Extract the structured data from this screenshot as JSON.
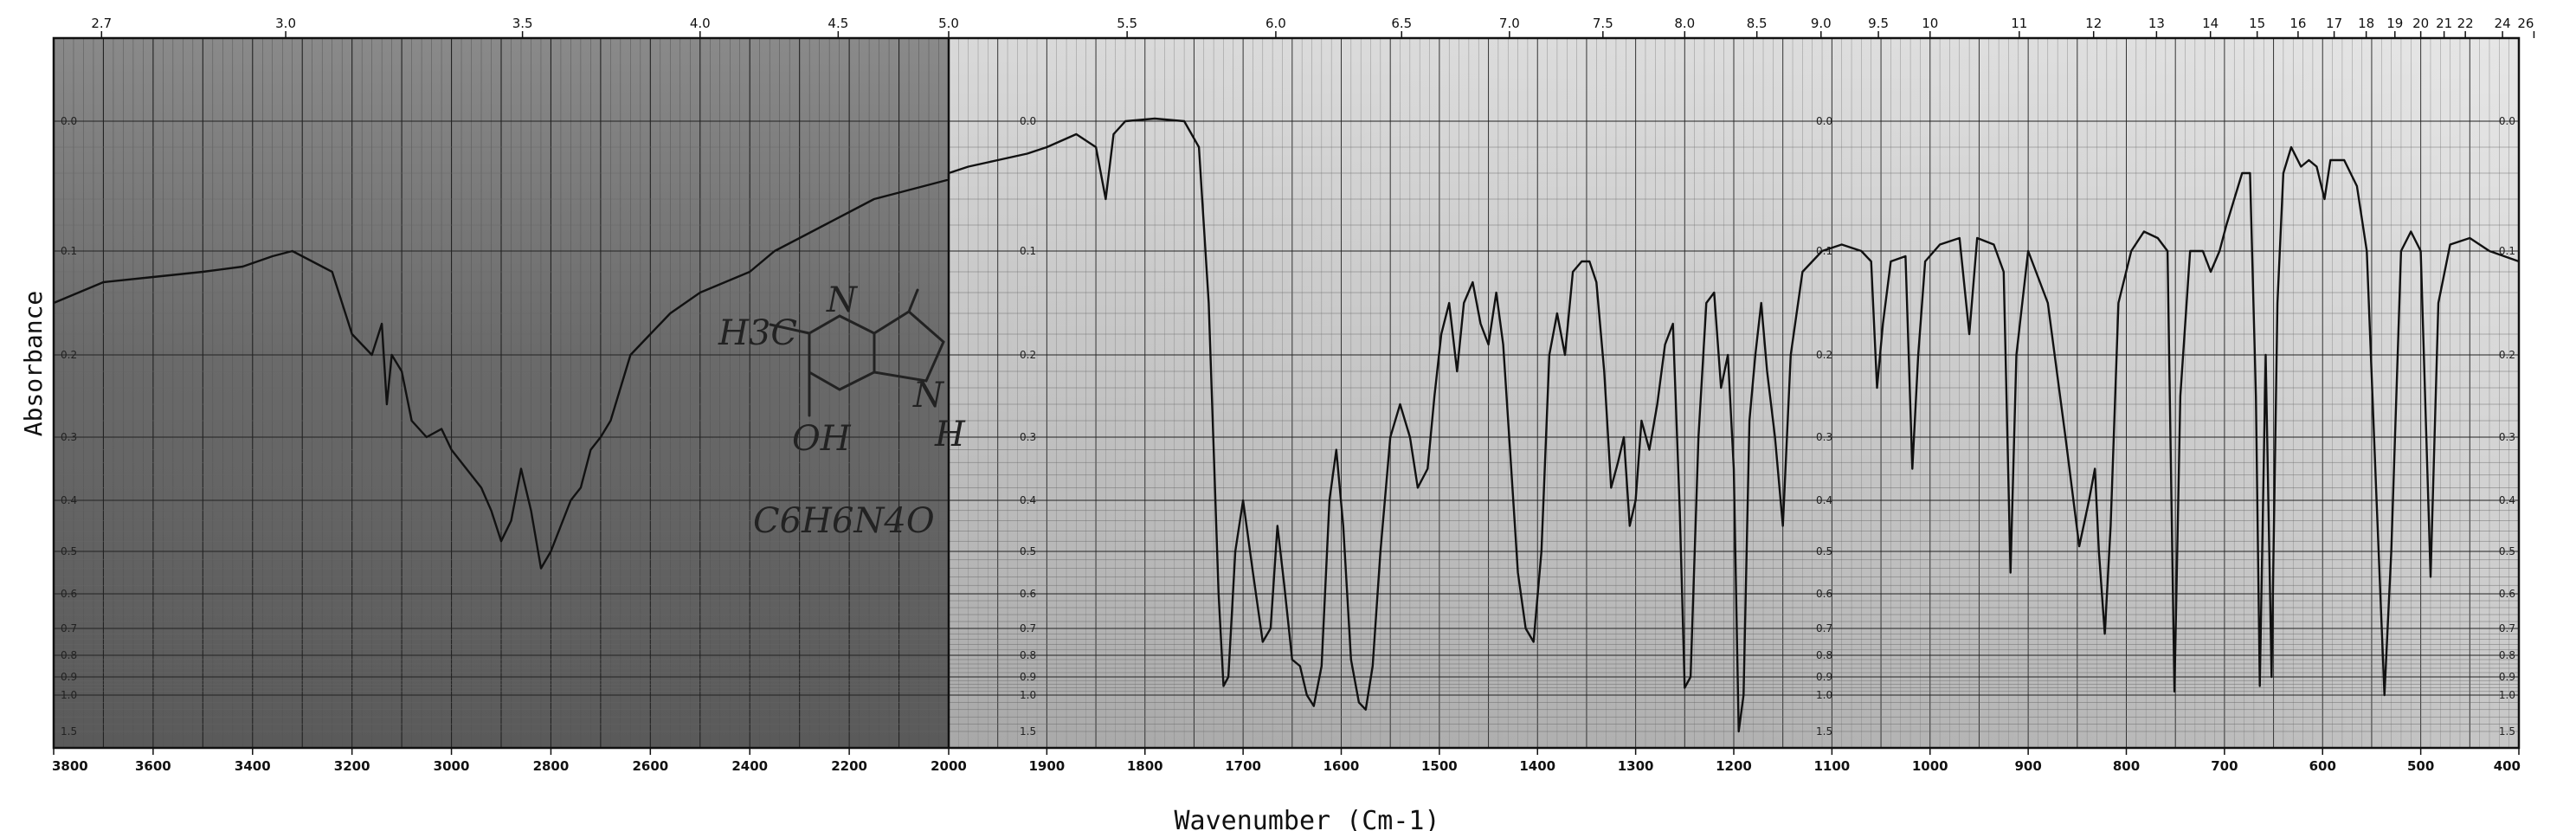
{
  "chart_data": {
    "type": "line",
    "title": "",
    "xlabel": "Wavenumber (Cm-1)",
    "ylabel": "Absorbance",
    "x_axis_bottom": {
      "label": "Wavenumber (Cm-1)",
      "ticks": [
        "3800",
        "3600",
        "3400",
        "3200",
        "3000",
        "2800",
        "2600",
        "2400",
        "2200",
        "2000",
        "1900",
        "1800",
        "1700",
        "1600",
        "1500",
        "1400",
        "1300",
        "1200",
        "1100",
        "1000",
        "900",
        "800",
        "700",
        "600",
        "500",
        "400"
      ]
    },
    "x_axis_top": {
      "ticks": [
        "2.7",
        "3.0",
        "3.5",
        "4.0",
        "4.5",
        "5.0",
        "5.5",
        "6.0",
        "6.5",
        "7.0",
        "7.5",
        "8.0",
        "8.5",
        "9.0",
        "9.5",
        "10",
        "11",
        "12",
        "13",
        "14",
        "15",
        "16",
        "17",
        "18",
        "19",
        "20",
        "21",
        "22",
        "24",
        "26"
      ]
    },
    "y_axis": {
      "ticks": [
        "0.0",
        "0.1",
        "0.2",
        "0.3",
        "0.4",
        "0.5",
        "0.6",
        "0.7",
        "0.8",
        "0.9",
        "1.0",
        "1.5"
      ],
      "ylim": [
        0,
        1.5
      ]
    },
    "annotation": {
      "formula_text": "C6H6N4O",
      "structure_labels": [
        "H3C",
        "N",
        "N",
        "OH",
        "H"
      ]
    },
    "series": [
      {
        "name": "",
        "color": "#111111",
        "points": [
          [
            3800,
            0.15
          ],
          [
            3700,
            0.13
          ],
          [
            3600,
            0.125
          ],
          [
            3500,
            0.12
          ],
          [
            3420,
            0.115
          ],
          [
            3360,
            0.105
          ],
          [
            3320,
            0.1
          ],
          [
            3280,
            0.11
          ],
          [
            3240,
            0.12
          ],
          [
            3200,
            0.18
          ],
          [
            3160,
            0.2
          ],
          [
            3140,
            0.17
          ],
          [
            3130,
            0.26
          ],
          [
            3120,
            0.2
          ],
          [
            3100,
            0.22
          ],
          [
            3080,
            0.28
          ],
          [
            3050,
            0.3
          ],
          [
            3020,
            0.29
          ],
          [
            3000,
            0.32
          ],
          [
            2970,
            0.35
          ],
          [
            2940,
            0.38
          ],
          [
            2920,
            0.42
          ],
          [
            2900,
            0.48
          ],
          [
            2880,
            0.44
          ],
          [
            2860,
            0.35
          ],
          [
            2840,
            0.42
          ],
          [
            2820,
            0.54
          ],
          [
            2800,
            0.5
          ],
          [
            2780,
            0.45
          ],
          [
            2760,
            0.4
          ],
          [
            2740,
            0.38
          ],
          [
            2720,
            0.32
          ],
          [
            2700,
            0.3
          ],
          [
            2680,
            0.28
          ],
          [
            2660,
            0.24
          ],
          [
            2640,
            0.2
          ],
          [
            2600,
            0.18
          ],
          [
            2560,
            0.16
          ],
          [
            2500,
            0.14
          ],
          [
            2450,
            0.13
          ],
          [
            2400,
            0.12
          ],
          [
            2350,
            0.1
          ],
          [
            2300,
            0.09
          ],
          [
            2250,
            0.08
          ],
          [
            2200,
            0.07
          ],
          [
            2150,
            0.06
          ],
          [
            2100,
            0.055
          ],
          [
            2050,
            0.05
          ],
          [
            2000,
            0.045
          ],
          [
            2000,
            0.04
          ],
          [
            1980,
            0.035
          ],
          [
            1950,
            0.03
          ],
          [
            1920,
            0.025
          ],
          [
            1900,
            0.02
          ],
          [
            1870,
            0.01
          ],
          [
            1850,
            0.02
          ],
          [
            1840,
            0.06
          ],
          [
            1832,
            0.01
          ],
          [
            1820,
            0.0
          ],
          [
            1790,
            -0.005
          ],
          [
            1760,
            0.0
          ],
          [
            1745,
            0.02
          ],
          [
            1735,
            0.15
          ],
          [
            1725,
            0.6
          ],
          [
            1720,
            0.95
          ],
          [
            1715,
            0.9
          ],
          [
            1708,
            0.5
          ],
          [
            1700,
            0.4
          ],
          [
            1690,
            0.55
          ],
          [
            1680,
            0.75
          ],
          [
            1672,
            0.7
          ],
          [
            1665,
            0.45
          ],
          [
            1658,
            0.58
          ],
          [
            1650,
            0.82
          ],
          [
            1642,
            0.85
          ],
          [
            1635,
            1.0
          ],
          [
            1628,
            1.15
          ],
          [
            1620,
            0.85
          ],
          [
            1612,
            0.4
          ],
          [
            1605,
            0.32
          ],
          [
            1598,
            0.45
          ],
          [
            1590,
            0.82
          ],
          [
            1582,
            1.1
          ],
          [
            1575,
            1.2
          ],
          [
            1568,
            0.85
          ],
          [
            1560,
            0.5
          ],
          [
            1550,
            0.3
          ],
          [
            1540,
            0.26
          ],
          [
            1530,
            0.3
          ],
          [
            1522,
            0.38
          ],
          [
            1512,
            0.35
          ],
          [
            1505,
            0.25
          ],
          [
            1498,
            0.18
          ],
          [
            1490,
            0.15
          ],
          [
            1482,
            0.22
          ],
          [
            1475,
            0.15
          ],
          [
            1466,
            0.13
          ],
          [
            1458,
            0.17
          ],
          [
            1450,
            0.19
          ],
          [
            1442,
            0.14
          ],
          [
            1435,
            0.19
          ],
          [
            1428,
            0.32
          ],
          [
            1420,
            0.55
          ],
          [
            1412,
            0.7
          ],
          [
            1404,
            0.75
          ],
          [
            1396,
            0.5
          ],
          [
            1388,
            0.2
          ],
          [
            1380,
            0.16
          ],
          [
            1372,
            0.2
          ],
          [
            1364,
            0.12
          ],
          [
            1355,
            0.11
          ],
          [
            1347,
            0.11
          ],
          [
            1340,
            0.13
          ],
          [
            1332,
            0.22
          ],
          [
            1325,
            0.38
          ],
          [
            1318,
            0.34
          ],
          [
            1312,
            0.3
          ],
          [
            1306,
            0.45
          ],
          [
            1300,
            0.4
          ],
          [
            1294,
            0.28
          ],
          [
            1286,
            0.32
          ],
          [
            1278,
            0.26
          ],
          [
            1270,
            0.19
          ],
          [
            1262,
            0.17
          ],
          [
            1255,
            0.42
          ],
          [
            1250,
            0.96
          ],
          [
            1244,
            0.9
          ],
          [
            1236,
            0.3
          ],
          [
            1228,
            0.15
          ],
          [
            1220,
            0.14
          ],
          [
            1213,
            0.24
          ],
          [
            1206,
            0.2
          ],
          [
            1200,
            0.35
          ],
          [
            1195,
            1.5
          ],
          [
            1190,
            1.0
          ],
          [
            1184,
            0.28
          ],
          [
            1178,
            0.2
          ],
          [
            1172,
            0.15
          ],
          [
            1166,
            0.22
          ],
          [
            1158,
            0.3
          ],
          [
            1150,
            0.45
          ],
          [
            1142,
            0.2
          ],
          [
            1130,
            0.12
          ],
          [
            1110,
            0.1
          ],
          [
            1090,
            0.095
          ],
          [
            1070,
            0.1
          ],
          [
            1060,
            0.11
          ],
          [
            1054,
            0.24
          ],
          [
            1048,
            0.17
          ],
          [
            1040,
            0.11
          ],
          [
            1025,
            0.105
          ],
          [
            1018,
            0.35
          ],
          [
            1012,
            0.2
          ],
          [
            1005,
            0.11
          ],
          [
            990,
            0.095
          ],
          [
            970,
            0.09
          ],
          [
            960,
            0.18
          ],
          [
            952,
            0.09
          ],
          [
            935,
            0.095
          ],
          [
            925,
            0.12
          ],
          [
            918,
            0.55
          ],
          [
            912,
            0.2
          ],
          [
            900,
            0.1
          ],
          [
            880,
            0.15
          ],
          [
            862,
            0.3
          ],
          [
            848,
            0.49
          ],
          [
            838,
            0.4
          ],
          [
            832,
            0.35
          ],
          [
            828,
            0.5
          ],
          [
            822,
            0.72
          ],
          [
            816,
            0.45
          ],
          [
            808,
            0.15
          ],
          [
            795,
            0.1
          ],
          [
            782,
            0.085
          ],
          [
            768,
            0.09
          ],
          [
            758,
            0.1
          ],
          [
            751,
            0.98
          ],
          [
            745,
            0.25
          ],
          [
            735,
            0.1
          ],
          [
            722,
            0.1
          ],
          [
            714,
            0.12
          ],
          [
            705,
            0.1
          ],
          [
            698,
            0.08
          ],
          [
            690,
            0.06
          ],
          [
            682,
            0.04
          ],
          [
            674,
            0.04
          ],
          [
            668,
            0.25
          ],
          [
            664,
            0.95
          ],
          [
            658,
            0.2
          ],
          [
            652,
            0.9
          ],
          [
            646,
            0.15
          ],
          [
            640,
            0.04
          ],
          [
            632,
            0.02
          ],
          [
            622,
            0.035
          ],
          [
            614,
            0.03
          ],
          [
            606,
            0.035
          ],
          [
            598,
            0.06
          ],
          [
            592,
            0.03
          ],
          [
            578,
            0.03
          ],
          [
            565,
            0.05
          ],
          [
            555,
            0.1
          ],
          [
            545,
            0.4
          ],
          [
            537,
            1.0
          ],
          [
            530,
            0.5
          ],
          [
            520,
            0.1
          ],
          [
            510,
            0.085
          ],
          [
            500,
            0.1
          ],
          [
            490,
            0.56
          ],
          [
            482,
            0.15
          ],
          [
            470,
            0.095
          ],
          [
            450,
            0.09
          ],
          [
            430,
            0.1
          ],
          [
            400,
            0.11
          ]
        ]
      }
    ]
  }
}
